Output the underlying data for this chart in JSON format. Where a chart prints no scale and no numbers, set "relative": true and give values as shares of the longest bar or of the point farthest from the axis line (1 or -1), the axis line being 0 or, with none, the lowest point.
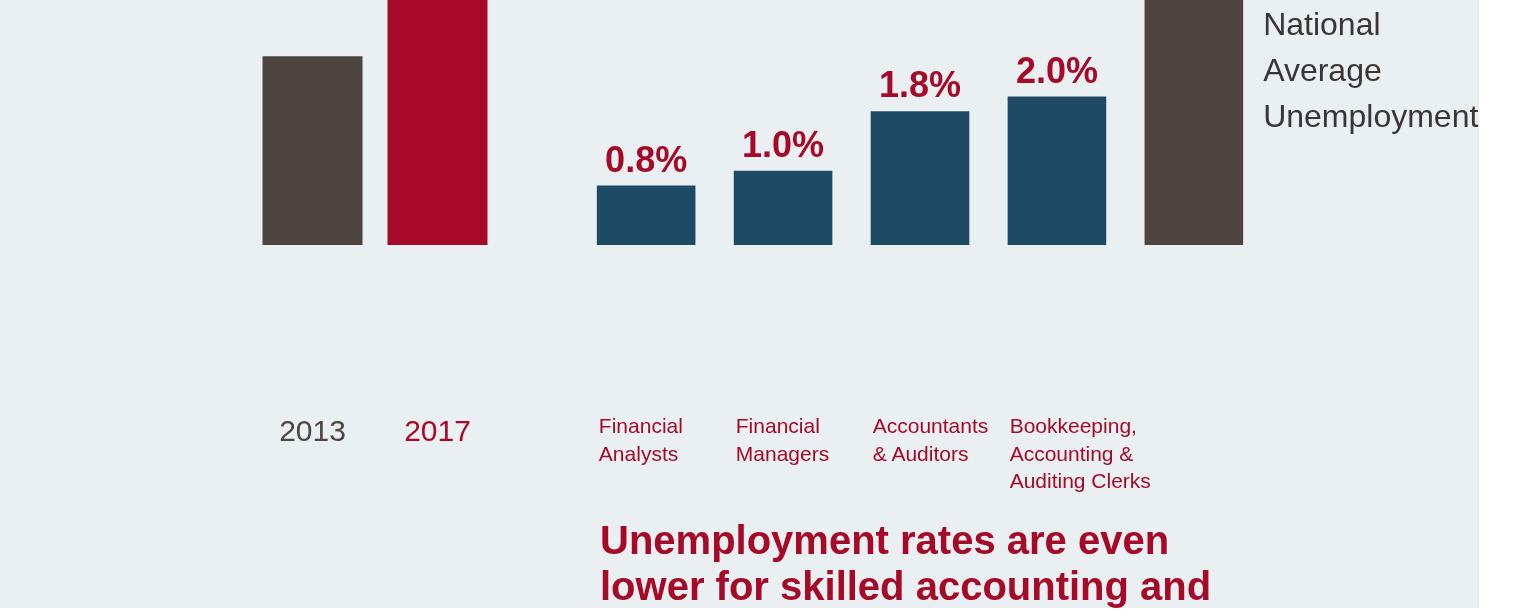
{
  "chart_data": [
    {
      "type": "bar",
      "categories": [
        "2013",
        "2017"
      ],
      "values": [
        0.77,
        1
      ],
      "colors": [
        "#4e4540",
        "#a60a28"
      ],
      "relative": true
    },
    {
      "type": "bar",
      "categories": [
        "Financial\nAnalysts",
        "Financial\nManagers",
        "Accountants\n& Auditors",
        "Bookkeeping,\nAccounting &\nAuditing Clerks",
        null
      ],
      "series": [
        {
          "color": "#1f4a66",
          "values": [
            0.8,
            1.0,
            1.8,
            2.0,
            null
          ],
          "value_labels": [
            "0.8%",
            "1.0%",
            "1.8%",
            "2.0%",
            null
          ]
        },
        {
          "name": "National\nAverage\nUnemployment",
          "color": "#4e4540",
          "values": [
            null,
            null,
            null,
            null,
            3.3
          ]
        }
      ],
      "tick_labels": "x",
      "annotations": [
        "Unemployment rates are even\nlower for skilled accounting and"
      ]
    }
  ]
}
